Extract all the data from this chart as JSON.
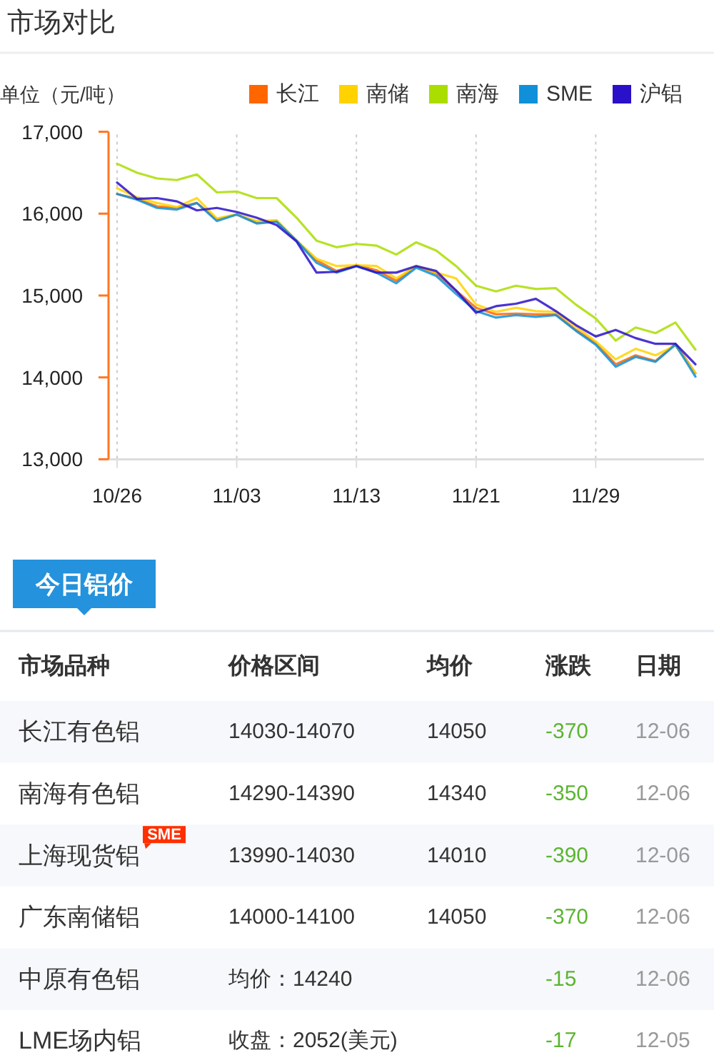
{
  "chart_data": [
    {
      "type": "line",
      "title": "市场对比",
      "ylabel": "单位（元/吨）",
      "categories": [
        "10/26",
        null,
        null,
        null,
        null,
        null,
        "11/03",
        null,
        null,
        null,
        null,
        null,
        "11/13",
        null,
        null,
        null,
        null,
        null,
        "11/21",
        null,
        null,
        null,
        null,
        null,
        "11/29",
        null,
        null,
        null,
        null,
        null
      ],
      "series": [
        {
          "name": "长江",
          "color": "#ff6600",
          "values": [
            16240,
            16180,
            16090,
            16070,
            16130,
            15930,
            15990,
            15890,
            15910,
            15670,
            15430,
            15300,
            15370,
            15310,
            15180,
            15360,
            15270,
            15060,
            14850,
            14770,
            14780,
            14770,
            14770,
            14580,
            14420,
            14160,
            14270,
            14200,
            14410,
            14050
          ]
        },
        {
          "name": "南储",
          "color": "#ffd200",
          "values": [
            16310,
            16200,
            16130,
            16080,
            16190,
            15940,
            15990,
            15910,
            15920,
            15670,
            15450,
            15360,
            15370,
            15360,
            15210,
            15360,
            15280,
            15210,
            14890,
            14800,
            14850,
            14810,
            14800,
            14620,
            14440,
            14220,
            14350,
            14270,
            14390,
            14050
          ]
        },
        {
          "name": "南海",
          "color": "#aadd00",
          "values": [
            16610,
            16500,
            16430,
            16410,
            16480,
            16260,
            16270,
            16190,
            16190,
            15950,
            15670,
            15590,
            15630,
            15610,
            15500,
            15650,
            15550,
            15360,
            15120,
            15050,
            15120,
            15080,
            15090,
            14890,
            14720,
            14450,
            14610,
            14540,
            14670,
            14340
          ]
        },
        {
          "name": "SME",
          "color": "#1090d8",
          "values": [
            16240,
            16170,
            16070,
            16050,
            16130,
            15910,
            15990,
            15880,
            15900,
            15670,
            15400,
            15280,
            15360,
            15280,
            15150,
            15340,
            15240,
            15020,
            14810,
            14730,
            14760,
            14740,
            14760,
            14570,
            14400,
            14130,
            14250,
            14190,
            14400,
            14010
          ]
        },
        {
          "name": "沪铝",
          "color": "#2a10c8",
          "values": [
            16380,
            16180,
            16190,
            16150,
            16040,
            16070,
            16020,
            15950,
            15860,
            15660,
            15280,
            15290,
            15360,
            15280,
            15280,
            15360,
            15300,
            15060,
            14790,
            14870,
            14900,
            14960,
            14810,
            14640,
            14500,
            14580,
            14480,
            14410,
            14410,
            14160
          ]
        }
      ],
      "ylim": [
        13000,
        17000
      ],
      "yticks": [
        {
          "value": 13000,
          "label": "13,000"
        },
        {
          "value": 14000,
          "label": "14,000"
        },
        {
          "value": 15000,
          "label": "15,000"
        },
        {
          "value": 16000,
          "label": "16,000"
        },
        {
          "value": 17000,
          "label": "17,000"
        }
      ],
      "grid": "x",
      "legend": "top right"
    },
    {
      "type": "other",
      "title": "今日铝价",
      "categories": [
        "市场品种",
        "价格区间",
        "均价",
        "涨跌",
        "日期"
      ],
      "y_categories": [
        "长江有色铝",
        "南海有色铝",
        "上海现货铝",
        "广东南储铝",
        "中原有色铝",
        "LME场内铝"
      ],
      "cell_labels": [
        [
          "14030-14070",
          "14050",
          "-370",
          "12-06"
        ],
        [
          "14290-14390",
          "14340",
          "-350",
          "12-06"
        ],
        [
          "13990-14030",
          "14010",
          "-390",
          "12-06"
        ],
        [
          "14000-14100",
          "14050",
          "-370",
          "12-06"
        ],
        [
          "均价：14240",
          null,
          "-15",
          "12-06"
        ],
        [
          "收盘：2052(美元)",
          null,
          "-17",
          "12-05"
        ]
      ],
      "annotations": [
        {
          "text": "SME",
          "y": "上海现货铝"
        }
      ]
    }
  ]
}
